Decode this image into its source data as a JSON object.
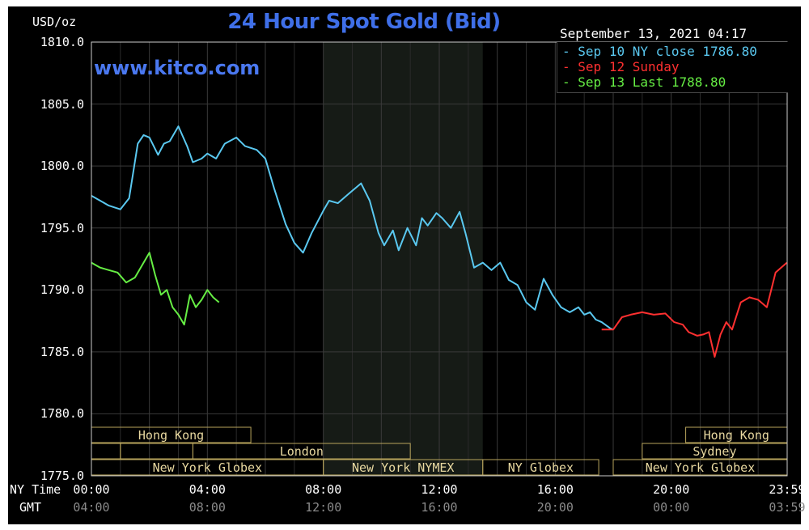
{
  "chart_data": {
    "type": "line",
    "title": "24 Hour Spot Gold (Bid)",
    "website": "www.kitco.com",
    "unit": "USD/oz",
    "datetime": "September 13, 2021 04:17",
    "ylim": [
      1775.0,
      1810.0
    ],
    "yticks": [
      "1775.0",
      "1780.0",
      "1785.0",
      "1790.0",
      "1795.0",
      "1800.0",
      "1805.0",
      "1810.0"
    ],
    "xlim": [
      0,
      24
    ],
    "x_row_label": "NY Time",
    "gmt_row_label": "GMT",
    "xticks": [
      {
        "x": 0,
        "ny": "00:00",
        "gmt": "04:00"
      },
      {
        "x": 4,
        "ny": "04:00",
        "gmt": "08:00"
      },
      {
        "x": 8,
        "ny": "08:00",
        "gmt": "12:00"
      },
      {
        "x": 12,
        "ny": "12:00",
        "gmt": "16:00"
      },
      {
        "x": 16,
        "ny": "16:00",
        "gmt": "20:00"
      },
      {
        "x": 20,
        "ny": "20:00",
        "gmt": "00:00"
      },
      {
        "x": 24,
        "ny": "23:59",
        "gmt": "03:59"
      }
    ],
    "shaded_region": [
      8,
      13.5
    ],
    "legend": [
      {
        "label": "Sep 10 NY close 1786.80",
        "color": "#5ac8f0"
      },
      {
        "label": "Sep 12 Sunday",
        "color": "#ff3030"
      },
      {
        "label": "Sep 13 Last 1788.80",
        "color": "#66ee44"
      }
    ],
    "sessions": [
      {
        "label": "Hong Kong",
        "row": 0,
        "start": 0,
        "end": 5.5
      },
      {
        "label": "Hong Kong",
        "row": 0,
        "start": 20.5,
        "end": 24
      },
      {
        "label": "",
        "row": 1,
        "start": 0,
        "end": 1
      },
      {
        "label": "",
        "row": 1,
        "start": 1,
        "end": 3.5
      },
      {
        "label": "London",
        "row": 1,
        "start": 3.5,
        "end": 11
      },
      {
        "label": "Sydney",
        "row": 1,
        "start": 19,
        "end": 24
      },
      {
        "label": "New York Globex",
        "row": 2,
        "start": 0,
        "end": 8
      },
      {
        "label": "New York NYMEX",
        "row": 2,
        "start": 8,
        "end": 13.5
      },
      {
        "label": "NY Globex",
        "row": 2,
        "start": 13.5,
        "end": 17.5
      },
      {
        "label": "New York Globex",
        "row": 2,
        "start": 18,
        "end": 24
      }
    ],
    "series": [
      {
        "name": "Sep 10 NY close 1786.80",
        "color": "#5ac8f0",
        "x": [
          0,
          0.3,
          0.6,
          1.0,
          1.3,
          1.6,
          1.8,
          2.0,
          2.3,
          2.5,
          2.7,
          3.0,
          3.3,
          3.5,
          3.8,
          4.0,
          4.3,
          4.6,
          5.0,
          5.3,
          5.7,
          6.0,
          6.3,
          6.7,
          7.0,
          7.3,
          7.6,
          8.0,
          8.2,
          8.5,
          8.9,
          9.3,
          9.6,
          9.9,
          10.1,
          10.4,
          10.6,
          10.9,
          11.2,
          11.4,
          11.6,
          11.9,
          12.1,
          12.4,
          12.7,
          12.9,
          13.2,
          13.5,
          13.8,
          14.1,
          14.4,
          14.7,
          15.0,
          15.3,
          15.6,
          15.9,
          16.2,
          16.5,
          16.8,
          17.0,
          17.2,
          17.4,
          17.6,
          17.9,
          18.0
        ],
        "values": [
          1797.6,
          1797.2,
          1796.8,
          1796.5,
          1797.4,
          1801.8,
          1802.5,
          1802.3,
          1800.9,
          1801.8,
          1802.0,
          1803.2,
          1801.6,
          1800.3,
          1800.6,
          1801.0,
          1800.6,
          1801.8,
          1802.3,
          1801.6,
          1801.3,
          1800.6,
          1798.2,
          1795.3,
          1793.8,
          1793.0,
          1794.6,
          1796.4,
          1797.2,
          1797.0,
          1797.8,
          1798.6,
          1797.2,
          1794.6,
          1793.6,
          1794.8,
          1793.2,
          1795.0,
          1793.6,
          1795.8,
          1795.2,
          1796.2,
          1795.8,
          1795.0,
          1796.3,
          1794.6,
          1791.8,
          1792.2,
          1791.6,
          1792.2,
          1790.8,
          1790.4,
          1789.0,
          1788.4,
          1790.9,
          1789.6,
          1788.6,
          1788.2,
          1788.6,
          1788.0,
          1788.2,
          1787.6,
          1787.4,
          1786.9,
          1786.8
        ]
      },
      {
        "name": "Sep 12 Sunday",
        "color": "#ff3030",
        "x": [
          17.6,
          18.0,
          18.3,
          18.6,
          19.0,
          19.4,
          19.8,
          20.1,
          20.4,
          20.6,
          20.9,
          21.1,
          21.3,
          21.5,
          21.7,
          21.9,
          22.1,
          22.4,
          22.7,
          23.0,
          23.3,
          23.6,
          23.99
        ],
        "values": [
          1786.8,
          1786.8,
          1787.8,
          1788.0,
          1788.2,
          1788.0,
          1788.1,
          1787.4,
          1787.2,
          1786.6,
          1786.3,
          1786.4,
          1786.6,
          1784.6,
          1786.4,
          1787.4,
          1786.8,
          1789.0,
          1789.4,
          1789.2,
          1788.6,
          1791.4,
          1792.2
        ]
      },
      {
        "name": "Sep 13 Last 1788.80",
        "color": "#66ee44",
        "x": [
          0,
          0.3,
          0.6,
          0.9,
          1.2,
          1.5,
          1.8,
          2.0,
          2.2,
          2.4,
          2.6,
          2.8,
          3.0,
          3.2,
          3.4,
          3.6,
          3.8,
          4.0,
          4.2,
          4.4
        ],
        "values": [
          1792.2,
          1791.8,
          1791.6,
          1791.4,
          1790.6,
          1791.0,
          1792.2,
          1793.0,
          1791.2,
          1789.6,
          1790.0,
          1788.6,
          1788.0,
          1787.2,
          1789.6,
          1788.6,
          1789.2,
          1790.0,
          1789.4,
          1789.0
        ]
      }
    ]
  }
}
